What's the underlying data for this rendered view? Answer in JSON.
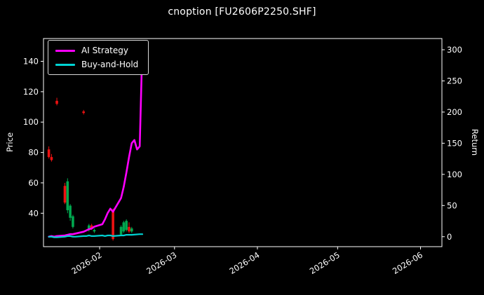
{
  "chart_data": {
    "type": "line",
    "title": "cnoption [FU2606P2250.SHF]",
    "ylabel_left": "Price",
    "ylabel_right": "Return",
    "background": "#000000",
    "text_color": "#ffffff",
    "grid": false,
    "legend_position": "upper left",
    "x_domain": [
      "2026-01-11",
      "2026-06-09"
    ],
    "x_ticks": [
      {
        "date": "2026-02-01",
        "label": "2026-02"
      },
      {
        "date": "2026-03-01",
        "label": "2026-03"
      },
      {
        "date": "2026-04-01",
        "label": "2026-04"
      },
      {
        "date": "2026-05-01",
        "label": "2026-05"
      },
      {
        "date": "2026-06-01",
        "label": "2026-06"
      }
    ],
    "left_ylim": [
      18,
      155
    ],
    "left_yticks": [
      40,
      60,
      80,
      100,
      120,
      140
    ],
    "right_ylim": [
      -16,
      318
    ],
    "right_yticks": [
      0,
      50,
      100,
      150,
      200,
      250,
      300
    ],
    "series": [
      {
        "name": "AI Strategy",
        "color": "#ff00ff",
        "axis": "right",
        "width": 2.6,
        "points": [
          [
            "2026-01-13",
            0
          ],
          [
            "2026-01-14",
            1
          ],
          [
            "2026-01-15",
            0
          ],
          [
            "2026-01-16",
            1
          ],
          [
            "2026-01-19",
            2
          ],
          [
            "2026-01-20",
            3
          ],
          [
            "2026-01-21",
            4
          ],
          [
            "2026-01-22",
            4
          ],
          [
            "2026-01-23",
            5
          ],
          [
            "2026-01-26",
            8
          ],
          [
            "2026-01-27",
            10
          ],
          [
            "2026-01-28",
            12
          ],
          [
            "2026-01-29",
            13
          ],
          [
            "2026-01-30",
            16
          ],
          [
            "2026-02-02",
            20
          ],
          [
            "2026-02-03",
            28
          ],
          [
            "2026-02-04",
            38
          ],
          [
            "2026-02-05",
            45
          ],
          [
            "2026-02-06",
            40
          ],
          [
            "2026-02-09",
            62
          ],
          [
            "2026-02-10",
            80
          ],
          [
            "2026-02-11",
            103
          ],
          [
            "2026-02-12",
            128
          ],
          [
            "2026-02-13",
            150
          ],
          [
            "2026-02-14",
            155
          ],
          [
            "2026-02-15",
            140
          ],
          [
            "2026-02-16",
            145
          ],
          [
            "2026-02-17",
            310
          ]
        ]
      },
      {
        "name": "Buy-and-Hold",
        "color": "#00d4d4",
        "axis": "right",
        "width": 2.2,
        "points": [
          [
            "2026-01-13",
            0
          ],
          [
            "2026-01-14",
            0
          ],
          [
            "2026-01-15",
            -1
          ],
          [
            "2026-01-16",
            -1
          ],
          [
            "2026-01-19",
            0
          ],
          [
            "2026-01-20",
            1
          ],
          [
            "2026-01-21",
            1
          ],
          [
            "2026-01-22",
            0
          ],
          [
            "2026-01-23",
            0
          ],
          [
            "2026-01-26",
            1
          ],
          [
            "2026-01-27",
            1
          ],
          [
            "2026-01-28",
            2
          ],
          [
            "2026-01-29",
            1
          ],
          [
            "2026-01-30",
            1
          ],
          [
            "2026-02-02",
            2
          ],
          [
            "2026-02-03",
            1
          ],
          [
            "2026-02-04",
            2
          ],
          [
            "2026-02-05",
            2
          ],
          [
            "2026-02-06",
            1
          ],
          [
            "2026-02-09",
            2
          ],
          [
            "2026-02-10",
            2
          ],
          [
            "2026-02-11",
            3
          ],
          [
            "2026-02-12",
            3
          ],
          [
            "2026-02-13",
            3
          ],
          [
            "2026-02-16",
            4
          ],
          [
            "2026-02-17",
            4
          ]
        ]
      }
    ],
    "candles": {
      "axis": "left",
      "up_color": "#00a84f",
      "down_color": "#ee1111",
      "data": [
        {
          "date": "2026-01-13",
          "open": 82,
          "high": 84,
          "low": 76,
          "close": 77
        },
        {
          "date": "2026-01-14",
          "open": 77,
          "high": 79,
          "low": 74,
          "close": 75
        },
        {
          "date": "2026-01-16",
          "open": 114,
          "high": 116,
          "low": 111,
          "close": 112
        },
        {
          "date": "2026-01-19",
          "open": 58,
          "high": 60,
          "low": 46,
          "close": 47
        },
        {
          "date": "2026-01-20",
          "open": 42,
          "high": 63,
          "low": 40,
          "close": 61
        },
        {
          "date": "2026-01-21",
          "open": 37,
          "high": 46,
          "low": 35,
          "close": 45
        },
        {
          "date": "2026-01-22",
          "open": 31,
          "high": 39,
          "low": 30,
          "close": 38
        },
        {
          "date": "2026-01-26",
          "open": 107,
          "high": 108,
          "low": 105,
          "close": 106
        },
        {
          "date": "2026-01-28",
          "open": 29,
          "high": 33,
          "low": 28,
          "close": 32
        },
        {
          "date": "2026-01-29",
          "open": 32,
          "high": 33,
          "low": 29,
          "close": 30
        },
        {
          "date": "2026-01-30",
          "open": 28,
          "high": 30,
          "low": 27,
          "close": 29
        },
        {
          "date": "2026-02-06",
          "open": 42,
          "high": 43,
          "low": 22,
          "close": 23
        },
        {
          "date": "2026-02-09",
          "open": 26,
          "high": 32,
          "low": 25,
          "close": 31
        },
        {
          "date": "2026-02-10",
          "open": 28,
          "high": 35,
          "low": 27,
          "close": 34
        },
        {
          "date": "2026-02-11",
          "open": 29,
          "high": 36,
          "low": 28,
          "close": 35
        },
        {
          "date": "2026-02-12",
          "open": 31,
          "high": 34,
          "low": 27,
          "close": 28
        },
        {
          "date": "2026-02-13",
          "open": 28,
          "high": 31,
          "low": 27,
          "close": 30
        }
      ]
    }
  }
}
